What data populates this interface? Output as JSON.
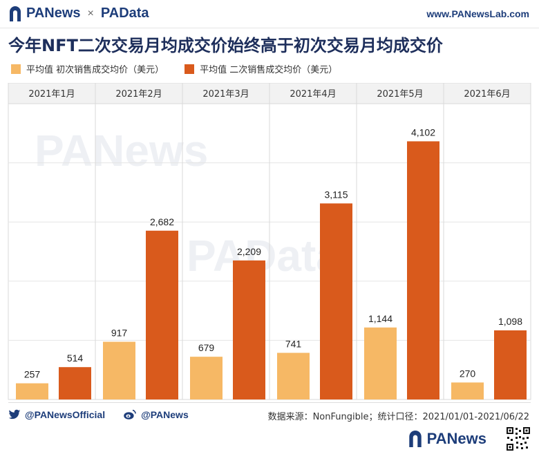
{
  "header": {
    "brand_left": "PANews",
    "separator": "×",
    "brand_right": "PAData",
    "website": "www.PANewsLab.com"
  },
  "colors": {
    "primary": "#f6b865",
    "secondary": "#d95a1c",
    "brand_navy": "#1d3d7a",
    "grid": "#d9d9d9"
  },
  "chart_data": {
    "type": "bar",
    "title": "今年NFT二次交易月均成交价始终高于初次交易月均成交价",
    "categories": [
      "2021年1月",
      "2021年2月",
      "2021年3月",
      "2021年4月",
      "2021年5月",
      "2021年6月"
    ],
    "series": [
      {
        "name": "平均值 初次销售成交均价（美元）",
        "values": [
          257,
          917,
          679,
          741,
          1144,
          270
        ],
        "labels": [
          "257",
          "917",
          "679",
          "741",
          "1,144",
          "270"
        ]
      },
      {
        "name": "平均值 二次销售成交均价（美元）",
        "values": [
          514,
          2682,
          2209,
          3115,
          4102,
          1098
        ],
        "labels": [
          "514",
          "2,682",
          "2,209",
          "3,115",
          "4,102",
          "1,098"
        ]
      }
    ],
    "ylim": [
      0,
      4700
    ],
    "legend_position": "top-left",
    "grid": true
  },
  "watermark": {
    "text_1": "PANews",
    "text_2": "PAData"
  },
  "footer": {
    "twitter": "@PANewsOfficial",
    "weibo": "@PANews",
    "source": "数据来源：NonFungible；统计口径：2021/01/01-2021/06/22",
    "bottom_brand": "PANews"
  }
}
